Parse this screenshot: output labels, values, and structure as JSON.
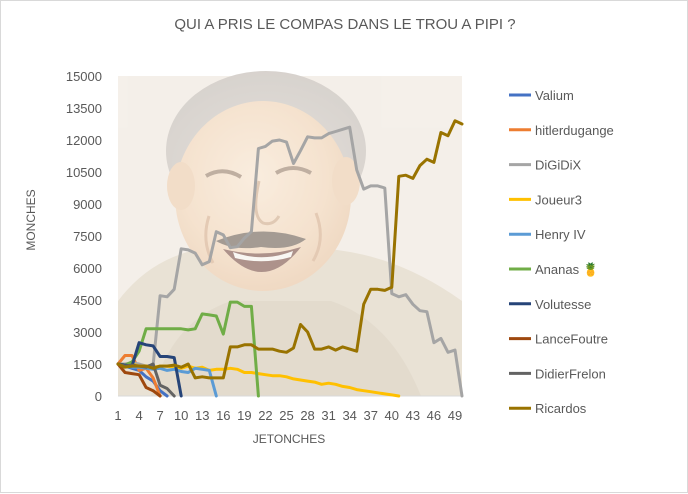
{
  "chart_data": {
    "type": "line",
    "title": "QUI A PRIS LE COMPAS DANS LE TROU A PIPI ?",
    "xlabel": "JETONCHES",
    "ylabel": "MONCHES",
    "xlim": [
      1,
      50
    ],
    "ylim": [
      0,
      15000
    ],
    "x_ticks": [
      1,
      4,
      7,
      10,
      13,
      16,
      19,
      22,
      25,
      28,
      31,
      34,
      37,
      40,
      43,
      46,
      49
    ],
    "y_ticks": [
      "0",
      "1500",
      "3000",
      "4500",
      "6000",
      "7500",
      "9000",
      "10500",
      "12000",
      "13500",
      "15000"
    ],
    "y_tick_values": [
      0,
      1500,
      3000,
      4500,
      6000,
      7500,
      9000,
      10500,
      12000,
      13500,
      15000
    ],
    "legend_position": "right",
    "background_image": "laughing-man-photo",
    "series": [
      {
        "name": "Valium",
        "color": "#4472c4",
        "x": [
          1,
          2,
          3,
          4,
          5,
          6,
          7,
          8
        ],
        "values": [
          1500,
          1400,
          1300,
          1200,
          900,
          700,
          250,
          0
        ]
      },
      {
        "name": "hitlerdugange",
        "color": "#ed7d31",
        "x": [
          1,
          2,
          3,
          4,
          5,
          6,
          7
        ],
        "values": [
          1500,
          1900,
          1900,
          1200,
          1300,
          850,
          0
        ]
      },
      {
        "name": "DiGiDiX",
        "color": "#a5a5a5",
        "x": [
          1,
          2,
          3,
          4,
          5,
          6,
          7,
          8,
          9,
          10,
          11,
          12,
          13,
          14,
          15,
          16,
          17,
          18,
          19,
          20,
          21,
          22,
          23,
          24,
          25,
          26,
          27,
          28,
          29,
          30,
          31,
          32,
          33,
          34,
          35,
          36,
          37,
          38,
          39,
          40,
          41,
          42,
          43,
          44,
          45,
          46,
          47,
          48,
          49,
          50
        ],
        "values": [
          1500,
          1500,
          1550,
          1500,
          1400,
          1450,
          4700,
          4650,
          5000,
          6900,
          6850,
          6700,
          6150,
          6300,
          7700,
          7550,
          6950,
          7000,
          7400,
          7700,
          11600,
          11700,
          11950,
          12000,
          11900,
          10900,
          11500,
          12150,
          12100,
          12100,
          12300,
          12400,
          12500,
          12600,
          10600,
          9700,
          9850,
          9850,
          9750,
          4800,
          4650,
          4750,
          4300,
          4000,
          3950,
          2500,
          2700,
          2050,
          2150,
          0
        ]
      },
      {
        "name": "Joueur3",
        "color": "#ffc000",
        "x": [
          1,
          2,
          3,
          4,
          5,
          6,
          7,
          8,
          9,
          10,
          11,
          12,
          13,
          14,
          15,
          16,
          17,
          18,
          19,
          20,
          21,
          22,
          23,
          24,
          25,
          26,
          27,
          28,
          29,
          30,
          31,
          32,
          33,
          34,
          35,
          36,
          37,
          38,
          39,
          40,
          41
        ],
        "values": [
          1500,
          1450,
          1500,
          1400,
          1400,
          1350,
          1400,
          1400,
          1350,
          1300,
          1400,
          1300,
          1350,
          1200,
          1250,
          1250,
          1300,
          1250,
          1100,
          1100,
          1050,
          1000,
          950,
          950,
          900,
          800,
          750,
          700,
          650,
          550,
          600,
          550,
          450,
          400,
          300,
          250,
          200,
          150,
          100,
          50,
          0
        ]
      },
      {
        "name": "Henry IV",
        "color": "#5b9bd5",
        "x": [
          1,
          2,
          3,
          4,
          5,
          6,
          7,
          8,
          9,
          10,
          11,
          12,
          13,
          14,
          15
        ],
        "values": [
          1500,
          1400,
          1350,
          1350,
          1300,
          1250,
          1300,
          1200,
          1250,
          1150,
          1100,
          1300,
          1250,
          1200,
          0
        ]
      },
      {
        "name": "Ananas 🍍",
        "color": "#70ad47",
        "x": [
          1,
          2,
          3,
          4,
          5,
          6,
          7,
          8,
          9,
          10,
          11,
          12,
          13,
          14,
          15,
          16,
          17,
          18,
          19,
          20,
          21
        ],
        "values": [
          1500,
          1450,
          1600,
          2100,
          3150,
          3150,
          3150,
          3150,
          3150,
          3150,
          3100,
          3150,
          3850,
          3800,
          3750,
          2900,
          4400,
          4400,
          4200,
          4200,
          0
        ]
      },
      {
        "name": "Volutesse",
        "color": "#264478",
        "x": [
          1,
          2,
          3,
          4,
          5,
          6,
          7,
          8,
          9,
          10
        ],
        "values": [
          1500,
          1450,
          1400,
          2500,
          2400,
          2350,
          1850,
          1850,
          1800,
          0
        ]
      },
      {
        "name": "LanceFoutre",
        "color": "#9e480e",
        "x": [
          1,
          2,
          3,
          4,
          5,
          6,
          7
        ],
        "values": [
          1500,
          1100,
          1050,
          1000,
          400,
          250,
          0
        ]
      },
      {
        "name": "DidierFrelon",
        "color": "#636363",
        "x": [
          1,
          2,
          3,
          4,
          5,
          6,
          7,
          8,
          9
        ],
        "values": [
          1500,
          1400,
          1450,
          1400,
          1350,
          1500,
          500,
          350,
          0
        ]
      },
      {
        "name": "Ricardos",
        "color": "#997300",
        "x": [
          1,
          2,
          3,
          4,
          5,
          6,
          7,
          8,
          9,
          10,
          11,
          12,
          13,
          14,
          15,
          16,
          17,
          18,
          19,
          20,
          21,
          22,
          23,
          24,
          25,
          26,
          27,
          28,
          29,
          30,
          31,
          32,
          33,
          34,
          35,
          36,
          37,
          38,
          39,
          40,
          41,
          42,
          43,
          44,
          45,
          46,
          47,
          48,
          49,
          50
        ],
        "values": [
          1500,
          1350,
          1400,
          1400,
          1400,
          1300,
          1400,
          1400,
          1450,
          1350,
          1500,
          850,
          900,
          850,
          850,
          850,
          2300,
          2300,
          2400,
          2400,
          2200,
          2200,
          2200,
          2100,
          2050,
          2250,
          3350,
          3000,
          2200,
          2200,
          2300,
          2150,
          2300,
          2200,
          2100,
          4300,
          5000,
          5000,
          4950,
          5100,
          10300,
          10350,
          10200,
          10800,
          11100,
          10950,
          12350,
          12200,
          12900,
          12750
        ]
      }
    ]
  }
}
